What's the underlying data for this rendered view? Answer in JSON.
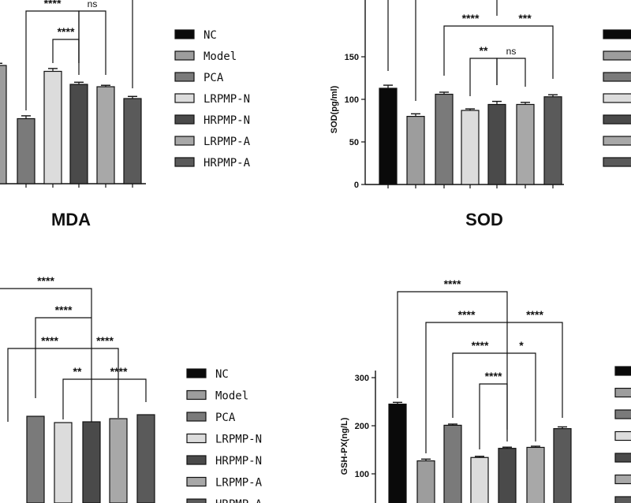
{
  "colors": {
    "NC": "#0a0a0a",
    "Model": "#9d9d9d",
    "PCA": "#7a7a7a",
    "LRPMP-N": "#dcdcdc",
    "HRPMP-N": "#4a4a4a",
    "LRPMP-A": "#a8a8a8",
    "HRPMP-A": "#5a5a5a"
  },
  "chart_data": [
    {
      "type": "bar",
      "panel": "top-left",
      "title": "MDA",
      "categories": [
        "NC",
        "Model",
        "PCA",
        "LRPMP-N",
        "HRPMP-N",
        "LRPMP-A",
        "HRPMP-A"
      ],
      "values": [
        null,
        100,
        55,
        95,
        84,
        82,
        72
      ],
      "errors": [
        null,
        1.5,
        2,
        2,
        1.5,
        1,
        1.5
      ],
      "legend": [
        "NC",
        "Model",
        "PCA",
        "LRPMP-N",
        "HRPMP-N",
        "LRPMP-A",
        "HRPMP-A"
      ],
      "legend_position": "right",
      "significance": [
        {
          "label": "****"
        },
        {
          "label": "ns"
        },
        {
          "label": "****"
        }
      ]
    },
    {
      "type": "bar",
      "panel": "top-right",
      "title": "SOD",
      "ylabel": "SOD(pg/ml)",
      "yticks": [
        0,
        50,
        100,
        150
      ],
      "categories": [
        "NC",
        "Model",
        "PCA",
        "LRPMP-N",
        "HRPMP-N",
        "LRPMP-A",
        "HRPMP-A"
      ],
      "values": [
        113,
        80,
        106,
        87,
        94,
        94,
        103
      ],
      "errors": [
        3,
        2.5,
        2,
        1.5,
        3,
        2,
        2
      ],
      "significance": [
        {
          "label": "****"
        },
        {
          "label": "***"
        },
        {
          "label": "**"
        },
        {
          "label": "ns"
        }
      ]
    },
    {
      "type": "bar",
      "panel": "bottom-left",
      "categories": [
        "NC",
        "Model",
        "PCA",
        "LRPMP-N",
        "HRPMP-N",
        "LRPMP-A",
        "HRPMP-A"
      ],
      "values": [
        null,
        null,
        110,
        102,
        103,
        107,
        112
      ],
      "legend": [
        "NC",
        "Model",
        "PCA",
        "LRPMP-N",
        "HRPMP-N",
        "LRPMP-A",
        "HRPMP-A"
      ],
      "legend_position": "right",
      "significance": [
        {
          "label": "****"
        },
        {
          "label": "****"
        },
        {
          "label": "****"
        },
        {
          "label": "****"
        },
        {
          "label": "**"
        },
        {
          "label": "****"
        }
      ]
    },
    {
      "type": "bar",
      "panel": "bottom-right",
      "ylabel": "GSH-PX(ng/L)",
      "yticks": [
        100,
        200,
        300
      ],
      "categories": [
        "NC",
        "Model",
        "PCA",
        "LRPMP-N",
        "HRPMP-N",
        "LRPMP-A",
        "HRPMP-A"
      ],
      "values": [
        245,
        127,
        201,
        134,
        153,
        155,
        194
      ],
      "errors": [
        3,
        3,
        2,
        2,
        2,
        2,
        3
      ],
      "significance": [
        {
          "label": "****"
        },
        {
          "label": "****"
        },
        {
          "label": "****"
        },
        {
          "label": "****"
        },
        {
          "label": "*"
        },
        {
          "label": "****"
        }
      ]
    }
  ]
}
